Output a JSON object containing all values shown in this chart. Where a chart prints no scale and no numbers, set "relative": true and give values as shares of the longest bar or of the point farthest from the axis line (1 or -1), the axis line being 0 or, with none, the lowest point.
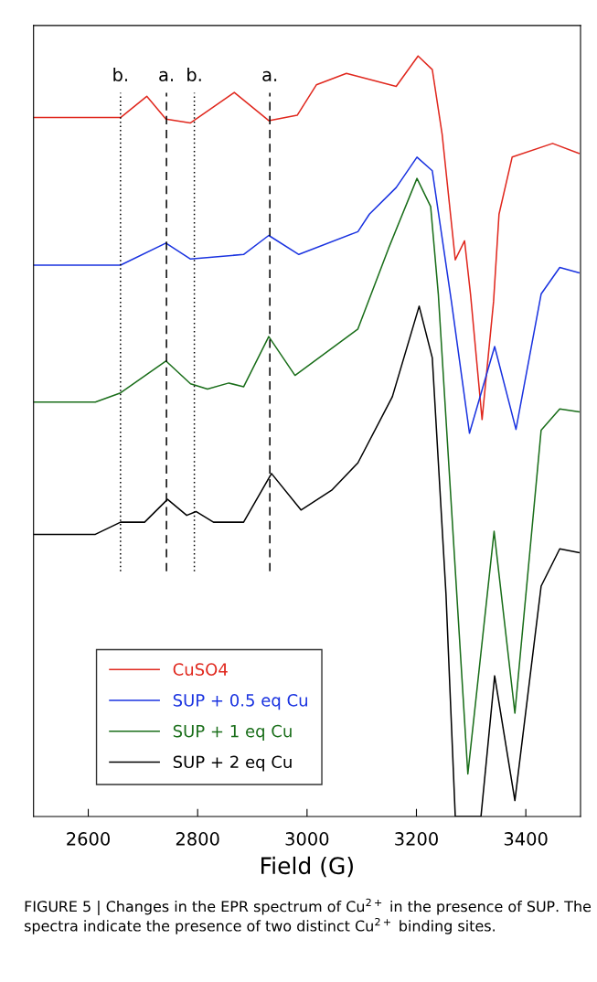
{
  "chart_data": {
    "type": "line",
    "relative": true,
    "xlabel": "Field (G)",
    "xlim": [
      2500,
      3500
    ],
    "xticks": [
      2600,
      2800,
      3000,
      3200,
      3400
    ],
    "legend": "bottom left",
    "grid": false,
    "marker": "none",
    "line_style": "solid",
    "tick_labels": "x",
    "series": [
      {
        "name": "CuSO4",
        "color": "#e0281e",
        "x": [
          2500,
          2659,
          2707,
          2742,
          2787,
          2867,
          2930,
          2982,
          3017,
          3072,
          3163,
          3203,
          3229,
          3247,
          3271,
          3288,
          3299,
          3320,
          3341,
          3351,
          3375,
          3449,
          3497
        ],
        "values": [
          0.919,
          0.919,
          0.947,
          0.917,
          0.912,
          0.952,
          0.915,
          0.922,
          0.962,
          0.977,
          0.96,
          1.0,
          0.982,
          0.897,
          0.732,
          0.757,
          0.686,
          0.522,
          0.677,
          0.792,
          0.867,
          0.885,
          0.872
        ]
      },
      {
        "name": "SUP + 0.5 eq Cu",
        "color": "#1a33e0",
        "x": [
          2500,
          2659,
          2742,
          2787,
          2884,
          2930,
          2985,
          3093,
          3114,
          3163,
          3201,
          3229,
          3264,
          3297,
          3343,
          3382,
          3428,
          3462,
          3497
        ],
        "values": [
          0.725,
          0.725,
          0.754,
          0.733,
          0.739,
          0.764,
          0.739,
          0.769,
          0.792,
          0.827,
          0.867,
          0.849,
          0.677,
          0.504,
          0.618,
          0.509,
          0.687,
          0.722,
          0.715
        ]
      },
      {
        "name": "SUP + 1 eq Cu",
        "color": "#1a6e1a",
        "x": [
          2500,
          2613,
          2659,
          2742,
          2787,
          2818,
          2857,
          2884,
          2930,
          2978,
          3093,
          3149,
          3201,
          3226,
          3240,
          3294,
          3342,
          3380,
          3428,
          3462,
          3497
        ],
        "values": [
          0.545,
          0.545,
          0.557,
          0.599,
          0.569,
          0.562,
          0.57,
          0.565,
          0.631,
          0.58,
          0.641,
          0.747,
          0.839,
          0.802,
          0.687,
          0.056,
          0.375,
          0.136,
          0.508,
          0.536,
          0.532
        ]
      },
      {
        "name": "SUP + 2 eq Cu",
        "color": "#000000",
        "x": [
          2500,
          2613,
          2659,
          2703,
          2745,
          2780,
          2797,
          2829,
          2884,
          2935,
          2989,
          3045,
          3093,
          3156,
          3205,
          3229,
          3254,
          3271,
          3318,
          3343,
          3380,
          3428,
          3462,
          3497
        ],
        "values": [
          0.371,
          0.371,
          0.387,
          0.387,
          0.417,
          0.396,
          0.401,
          0.387,
          0.387,
          0.451,
          0.403,
          0.429,
          0.465,
          0.552,
          0.671,
          0.603,
          0.293,
          0.0,
          0.0,
          0.185,
          0.021,
          0.303,
          0.352,
          0.347
        ]
      }
    ],
    "ref_lines": [
      {
        "axis": "x",
        "value": 2659,
        "label": "b.",
        "line_style": "dotted",
        "color": "#000000"
      },
      {
        "axis": "x",
        "value": 2743,
        "label": "a.",
        "line_style": "dashed",
        "color": "#000000"
      },
      {
        "axis": "x",
        "value": 2794,
        "label": "b.",
        "line_style": "dotted",
        "color": "#000000"
      },
      {
        "axis": "x",
        "value": 2932,
        "label": "a.",
        "line_style": "dashed",
        "color": "#000000"
      }
    ],
    "annotations": [
      "FIGURE 5 | Changes in the EPR spectrum of Cu$^{2+}$ in the presence of SUP. The spectra indicate the presence of two distinct Cu$^{2+}$ binding sites."
    ]
  }
}
